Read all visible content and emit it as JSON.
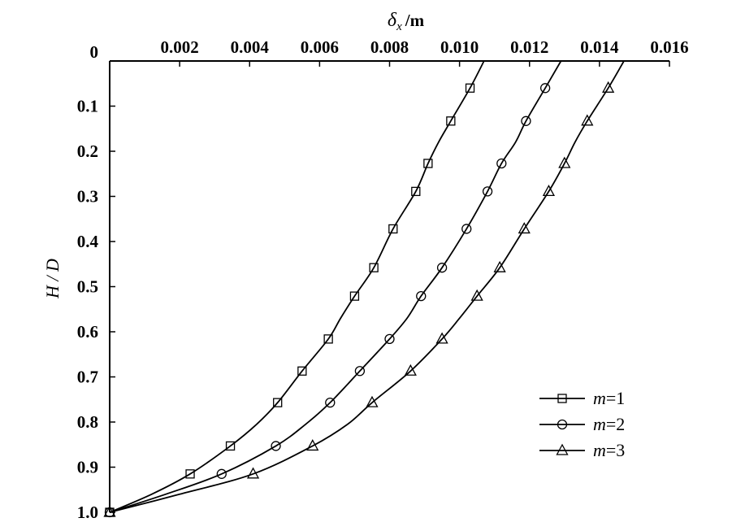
{
  "chart_data": {
    "type": "line",
    "xlabel": {
      "symbol": "δ",
      "subscript": "x",
      "unit": "/m"
    },
    "ylabel": "H / D",
    "xlim": [
      0,
      0.016
    ],
    "ylim": [
      0,
      1.0
    ],
    "y_inverted": true,
    "x_axis_position": "top",
    "grid": false,
    "legend_position": "bottom-right",
    "x_ticks": [
      "0.002",
      "0.004",
      "0.006",
      "0.008",
      "0.010",
      "0.012",
      "0.014",
      "0.016"
    ],
    "y_ticks": [
      "0",
      "0.1",
      "0.2",
      "0.3",
      "0.4",
      "0.5",
      "0.6",
      "0.7",
      "0.8",
      "0.9",
      "1.0"
    ],
    "series": [
      {
        "name": "m=1",
        "legend_var": "m",
        "legend_val": "=1",
        "marker": "square",
        "points": [
          [
            0.0,
            1.0
          ],
          [
            0.0023,
            0.915
          ],
          [
            0.00345,
            0.853
          ],
          [
            0.0048,
            0.757
          ],
          [
            0.0055,
            0.687
          ],
          [
            0.00625,
            0.616
          ],
          [
            0.007,
            0.521
          ],
          [
            0.00755,
            0.458
          ],
          [
            0.0081,
            0.372
          ],
          [
            0.00875,
            0.289
          ],
          [
            0.0091,
            0.227
          ],
          [
            0.00975,
            0.133
          ],
          [
            0.0103,
            0.06
          ]
        ],
        "curve": [
          [
            0.0,
            1.0
          ],
          [
            0.0012,
            0.96
          ],
          [
            0.0023,
            0.915
          ],
          [
            0.00345,
            0.853
          ],
          [
            0.0042,
            0.805
          ],
          [
            0.0048,
            0.757
          ],
          [
            0.0055,
            0.687
          ],
          [
            0.00625,
            0.616
          ],
          [
            0.0066,
            0.57
          ],
          [
            0.007,
            0.521
          ],
          [
            0.00755,
            0.458
          ],
          [
            0.0081,
            0.372
          ],
          [
            0.00875,
            0.289
          ],
          [
            0.0091,
            0.227
          ],
          [
            0.0094,
            0.18
          ],
          [
            0.00975,
            0.133
          ],
          [
            0.0103,
            0.06
          ],
          [
            0.0107,
            0.0
          ]
        ]
      },
      {
        "name": "m=2",
        "legend_var": "m",
        "legend_val": "=2",
        "marker": "circle",
        "points": [
          [
            0.0,
            1.0
          ],
          [
            0.0032,
            0.915
          ],
          [
            0.00475,
            0.853
          ],
          [
            0.0063,
            0.757
          ],
          [
            0.00715,
            0.687
          ],
          [
            0.008,
            0.616
          ],
          [
            0.0089,
            0.521
          ],
          [
            0.0095,
            0.458
          ],
          [
            0.0102,
            0.372
          ],
          [
            0.0108,
            0.289
          ],
          [
            0.0112,
            0.227
          ],
          [
            0.0119,
            0.133
          ],
          [
            0.01245,
            0.06
          ]
        ],
        "curve": [
          [
            0.0,
            1.0
          ],
          [
            0.0016,
            0.96
          ],
          [
            0.0032,
            0.915
          ],
          [
            0.00475,
            0.853
          ],
          [
            0.0056,
            0.805
          ],
          [
            0.0063,
            0.757
          ],
          [
            0.00715,
            0.687
          ],
          [
            0.008,
            0.616
          ],
          [
            0.0085,
            0.57
          ],
          [
            0.0089,
            0.521
          ],
          [
            0.0095,
            0.458
          ],
          [
            0.0102,
            0.372
          ],
          [
            0.0108,
            0.289
          ],
          [
            0.0112,
            0.227
          ],
          [
            0.0116,
            0.18
          ],
          [
            0.0119,
            0.133
          ],
          [
            0.01245,
            0.06
          ],
          [
            0.0129,
            0.0
          ]
        ]
      },
      {
        "name": "m=3",
        "legend_var": "m",
        "legend_val": "=3",
        "marker": "triangle",
        "points": [
          [
            0.0,
            1.0
          ],
          [
            0.0041,
            0.915
          ],
          [
            0.0058,
            0.853
          ],
          [
            0.0075,
            0.757
          ],
          [
            0.0086,
            0.687
          ],
          [
            0.0095,
            0.616
          ],
          [
            0.0105,
            0.521
          ],
          [
            0.01115,
            0.458
          ],
          [
            0.01185,
            0.372
          ],
          [
            0.01255,
            0.289
          ],
          [
            0.013,
            0.227
          ],
          [
            0.01365,
            0.133
          ],
          [
            0.01425,
            0.06
          ]
        ],
        "curve": [
          [
            0.0,
            1.0
          ],
          [
            0.002,
            0.96
          ],
          [
            0.0041,
            0.915
          ],
          [
            0.0058,
            0.853
          ],
          [
            0.0068,
            0.805
          ],
          [
            0.0075,
            0.757
          ],
          [
            0.0086,
            0.687
          ],
          [
            0.0095,
            0.616
          ],
          [
            0.01,
            0.57
          ],
          [
            0.0105,
            0.521
          ],
          [
            0.01115,
            0.458
          ],
          [
            0.01185,
            0.372
          ],
          [
            0.01255,
            0.289
          ],
          [
            0.013,
            0.227
          ],
          [
            0.0133,
            0.18
          ],
          [
            0.01365,
            0.133
          ],
          [
            0.01425,
            0.06
          ],
          [
            0.0147,
            0.0
          ]
        ]
      }
    ]
  }
}
